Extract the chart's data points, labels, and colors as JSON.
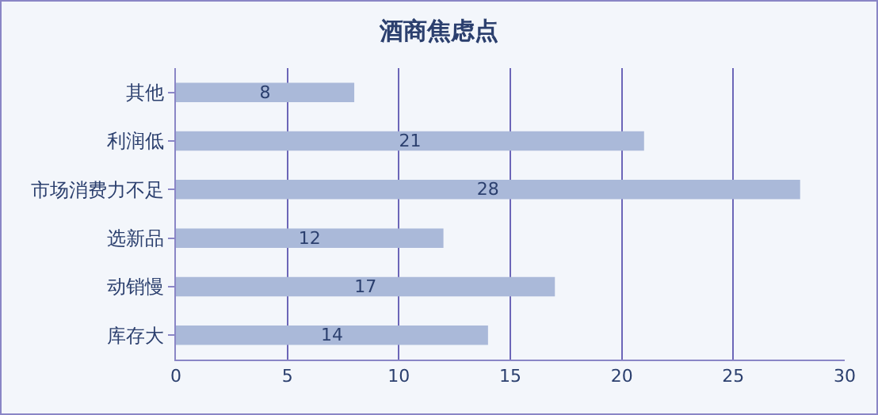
{
  "chart_data": {
    "type": "bar",
    "orientation": "horizontal",
    "title": "酒商焦虑点",
    "categories": [
      "其他",
      "利润低",
      "市场消费力不足",
      "选新品",
      "动销慢",
      "库存大"
    ],
    "values": [
      8,
      21,
      28,
      12,
      17,
      14
    ],
    "color": "#aab9d9",
    "xlim": [
      0,
      30
    ],
    "xticks": [
      0,
      5,
      10,
      15,
      20,
      25,
      30
    ],
    "grid": "x",
    "data_labels": true
  }
}
